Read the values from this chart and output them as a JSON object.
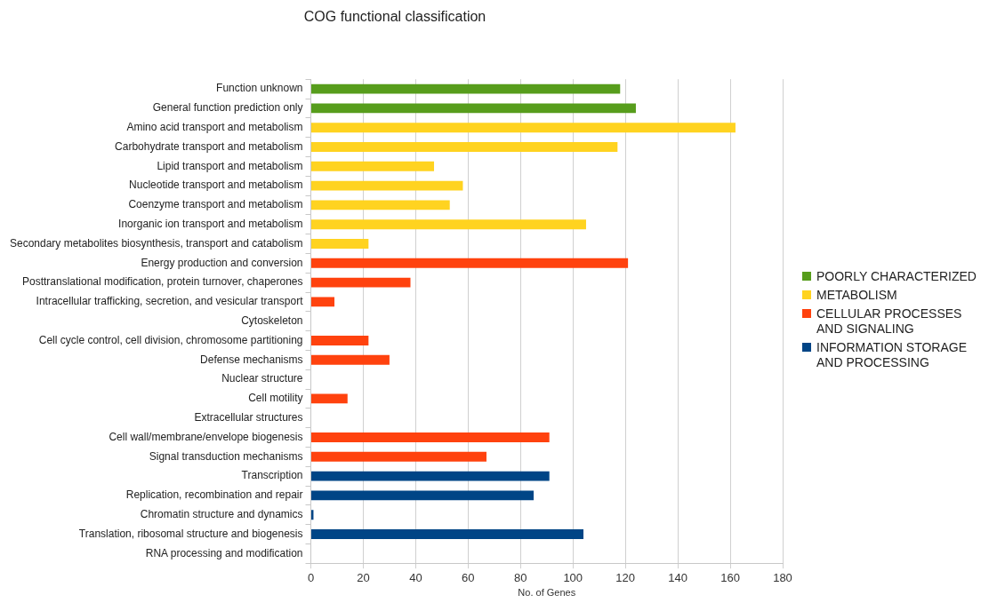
{
  "chart_data": {
    "type": "bar",
    "title": "COG functional classification",
    "xlabel": "No. of Genes",
    "orientation": "horizontal",
    "stacked": true,
    "categories": [
      "Function unknown",
      "General function prediction only",
      "Amino acid transport and metabolism",
      "Carbohydrate transport and metabolism",
      "Lipid transport and metabolism",
      "Nucleotide transport and metabolism",
      "Coenzyme transport and metabolism",
      "Inorganic ion transport and metabolism",
      "Secondary metabolites biosynthesis, transport and catabolism",
      "Energy production and conversion",
      "Posttranslational modification, protein turnover, chaperones",
      "Intracellular trafficking, secretion, and vesicular transport",
      "Cytoskeleton",
      "Cell cycle control, cell division, chromosome partitioning",
      "Defense mechanisms",
      "Nuclear structure",
      "Cell motility",
      "Extracellular structures",
      "Cell wall/membrane/envelope biogenesis",
      "Signal transduction mechanisms",
      "Transcription",
      "Replication, recombination and repair",
      "Chromatin structure and dynamics",
      "Translation, ribosomal structure and biogenesis",
      "RNA processing and modification"
    ],
    "series": [
      {
        "name": "POORLY CHARACTERIZED",
        "color": "#579d1c",
        "values": [
          118,
          124,
          null,
          null,
          null,
          null,
          null,
          null,
          null,
          null,
          null,
          null,
          null,
          null,
          null,
          null,
          null,
          null,
          null,
          null,
          null,
          null,
          null,
          null,
          null
        ]
      },
      {
        "name": "METABOLISM",
        "color": "#ffd320",
        "values": [
          null,
          null,
          162,
          117,
          47,
          58,
          53,
          105,
          22,
          null,
          null,
          null,
          null,
          null,
          null,
          null,
          null,
          null,
          null,
          null,
          null,
          null,
          null,
          null,
          null
        ]
      },
      {
        "name": "CELLULAR PROCESSES AND SIGNALING",
        "color": "#ff420e",
        "values": [
          null,
          null,
          null,
          null,
          null,
          null,
          null,
          null,
          null,
          121,
          38,
          9,
          0,
          22,
          30,
          0,
          14,
          0,
          91,
          67,
          null,
          null,
          null,
          null,
          null
        ]
      },
      {
        "name": "INFORMATION STORAGE AND PROCESSING",
        "color": "#004586",
        "values": [
          null,
          null,
          null,
          null,
          null,
          null,
          null,
          null,
          null,
          null,
          null,
          null,
          null,
          null,
          null,
          null,
          null,
          null,
          null,
          null,
          91,
          85,
          1,
          104,
          0
        ]
      }
    ],
    "xlim": [
      0,
      180
    ],
    "xticks": [
      0,
      20,
      40,
      60,
      80,
      100,
      120,
      140,
      160,
      180
    ],
    "grid": "x",
    "legend": "right"
  }
}
